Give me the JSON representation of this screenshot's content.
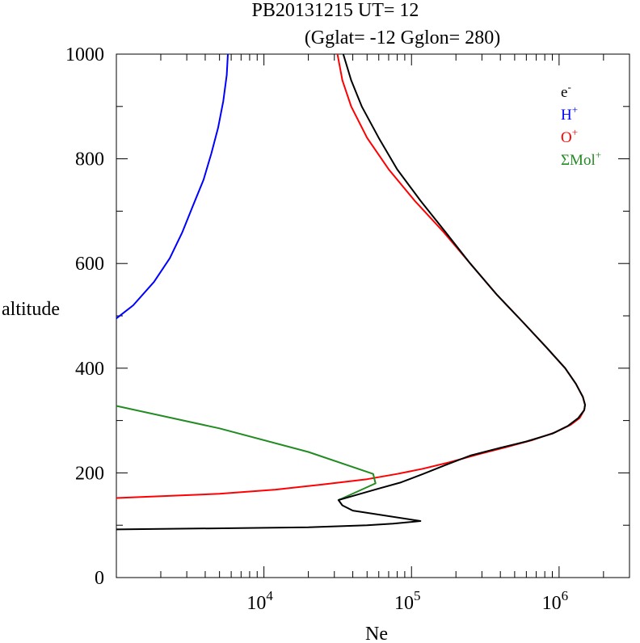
{
  "chart_data": {
    "type": "line",
    "title_line1": "PB20131215   UT=  12",
    "title_line2": "(Gglat= -12   Gglon=  280)",
    "xlabel": "Ne",
    "ylabel": "altitude",
    "x_scale": "log",
    "xlim": [
      1000,
      3000000
    ],
    "ylim": [
      0,
      1000
    ],
    "grid": false,
    "legend_position": "top-right",
    "x_ticks": [
      {
        "value": 10000,
        "base": "10",
        "exp": "4"
      },
      {
        "value": 100000,
        "base": "10",
        "exp": "5"
      },
      {
        "value": 1000000,
        "base": "10",
        "exp": "6"
      }
    ],
    "y_ticks": [
      {
        "value": 0,
        "label": "0"
      },
      {
        "value": 200,
        "label": "200"
      },
      {
        "value": 400,
        "label": "400"
      },
      {
        "value": 600,
        "label": "600"
      },
      {
        "value": 800,
        "label": "800"
      },
      {
        "value": 1000,
        "label": "1000"
      }
    ],
    "series": [
      {
        "name": "e-",
        "label_base": "e",
        "label_sup": "-",
        "color": "#000000",
        "points": [
          [
            1000,
            92
          ],
          [
            20000,
            96
          ],
          [
            50000,
            100
          ],
          [
            75000,
            103
          ],
          [
            115000,
            108
          ],
          [
            40000,
            128
          ],
          [
            34000,
            138
          ],
          [
            32000,
            148
          ],
          [
            45000,
            160
          ],
          [
            60000,
            170
          ],
          [
            85000,
            182
          ],
          [
            120000,
            198
          ],
          [
            170000,
            215
          ],
          [
            250000,
            233
          ],
          [
            400000,
            248
          ],
          [
            600000,
            260
          ],
          [
            900000,
            275
          ],
          [
            1150000,
            290
          ],
          [
            1350000,
            305
          ],
          [
            1480000,
            320
          ],
          [
            1500000,
            330
          ],
          [
            1450000,
            345
          ],
          [
            1300000,
            370
          ],
          [
            1100000,
            400
          ],
          [
            820000,
            440
          ],
          [
            560000,
            490
          ],
          [
            380000,
            540
          ],
          [
            250000,
            600
          ],
          [
            170000,
            660
          ],
          [
            115000,
            720
          ],
          [
            80000,
            780
          ],
          [
            60000,
            840
          ],
          [
            46000,
            900
          ],
          [
            39000,
            950
          ],
          [
            34500,
            1000
          ]
        ]
      },
      {
        "name": "H+",
        "label_base": "H",
        "label_sup": "+",
        "color": "#0000ff",
        "points": [
          [
            1000,
            495
          ],
          [
            1300,
            520
          ],
          [
            1800,
            565
          ],
          [
            2300,
            610
          ],
          [
            2800,
            660
          ],
          [
            3300,
            710
          ],
          [
            3900,
            760
          ],
          [
            4400,
            810
          ],
          [
            4900,
            860
          ],
          [
            5300,
            910
          ],
          [
            5600,
            960
          ],
          [
            5700,
            1000
          ]
        ]
      },
      {
        "name": "O+",
        "label_base": "O",
        "label_sup": "+",
        "color": "#ff0000",
        "points": [
          [
            1000,
            152
          ],
          [
            5000,
            160
          ],
          [
            12000,
            168
          ],
          [
            25000,
            178
          ],
          [
            50000,
            188
          ],
          [
            80000,
            198
          ],
          [
            120000,
            208
          ],
          [
            180000,
            220
          ],
          [
            280000,
            235
          ],
          [
            450000,
            250
          ],
          [
            650000,
            262
          ],
          [
            950000,
            278
          ],
          [
            1200000,
            292
          ],
          [
            1380000,
            305
          ],
          [
            1480000,
            320
          ],
          [
            1500000,
            330
          ],
          [
            1450000,
            345
          ],
          [
            1300000,
            370
          ],
          [
            1100000,
            400
          ],
          [
            820000,
            440
          ],
          [
            560000,
            490
          ],
          [
            380000,
            540
          ],
          [
            250000,
            600
          ],
          [
            165000,
            660
          ],
          [
            105000,
            720
          ],
          [
            70000,
            780
          ],
          [
            50000,
            840
          ],
          [
            39000,
            900
          ],
          [
            34000,
            950
          ],
          [
            31500,
            1000
          ]
        ]
      },
      {
        "name": "ΣMol+",
        "label_base": "ΣMol",
        "label_sup": "+",
        "color": "#228b22",
        "points": [
          [
            1000,
            328
          ],
          [
            5000,
            285
          ],
          [
            20000,
            240
          ],
          [
            55000,
            198
          ],
          [
            57000,
            180
          ],
          [
            32000,
            148
          ],
          [
            33000,
            150
          ]
        ]
      }
    ]
  }
}
